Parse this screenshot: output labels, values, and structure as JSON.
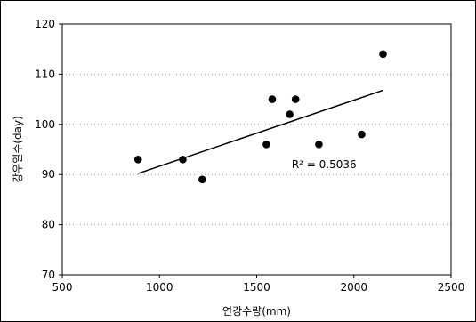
{
  "chart_data": {
    "type": "scatter",
    "xlabel": "연강수량(mm)",
    "ylabel": "강우일수(day)",
    "xlim": [
      500,
      2500
    ],
    "ylim": [
      70,
      120
    ],
    "x_ticks": [
      "500",
      "1000",
      "1500",
      "2000",
      "2500"
    ],
    "y_ticks": [
      "70",
      "80",
      "90",
      "100",
      "110",
      "120"
    ],
    "x_tick_values": [
      500,
      1000,
      1500,
      2000,
      2500
    ],
    "y_tick_values": [
      70,
      80,
      90,
      100,
      110,
      120
    ],
    "grid": true,
    "points": [
      {
        "x": 890,
        "y": 93
      },
      {
        "x": 1120,
        "y": 93
      },
      {
        "x": 1220,
        "y": 89
      },
      {
        "x": 1550,
        "y": 96
      },
      {
        "x": 1580,
        "y": 105
      },
      {
        "x": 1670,
        "y": 102
      },
      {
        "x": 1700,
        "y": 105
      },
      {
        "x": 1820,
        "y": 96
      },
      {
        "x": 2040,
        "y": 98
      },
      {
        "x": 2150,
        "y": 114
      }
    ],
    "trendline": {
      "x": [
        890,
        2150
      ],
      "y": [
        90.2,
        106.8
      ]
    },
    "annotation": {
      "text": "R² = 0.5036",
      "x": 1680,
      "y": 92
    }
  }
}
